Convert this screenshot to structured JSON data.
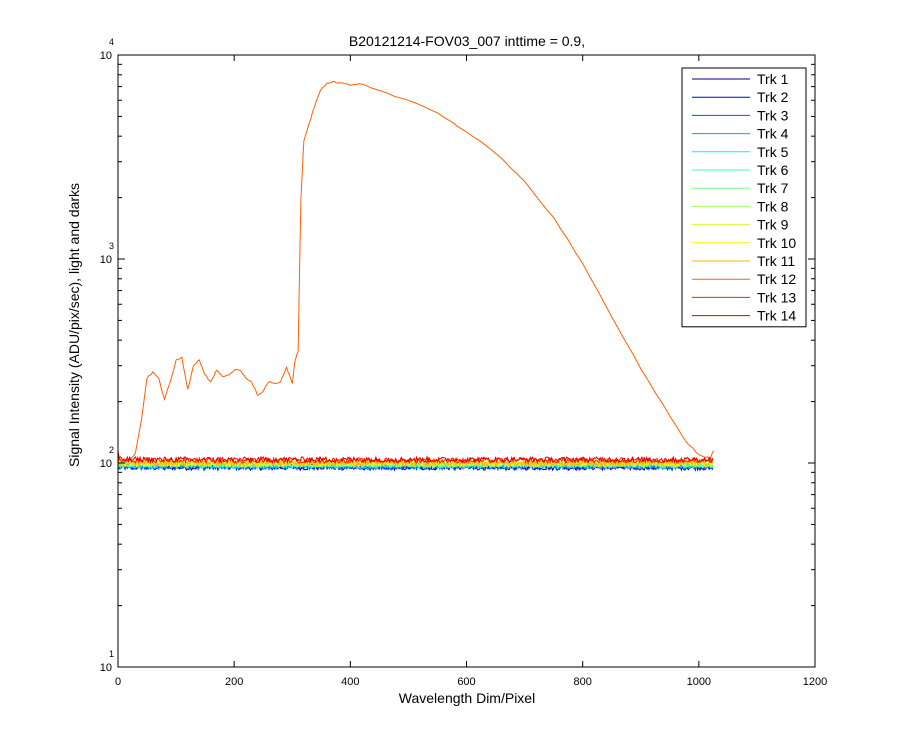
{
  "chart_data": {
    "type": "line",
    "title": "B20121214-FOV03_007 inttime = 0.9,",
    "xlabel": "Wavelength Dim/Pixel",
    "ylabel": "Signal Intensity (ADU/pix/sec), light and darks",
    "xlim": [
      0,
      1200
    ],
    "ylim": [
      10,
      10000
    ],
    "yscale": "log",
    "grid": false,
    "legend_position": "top-right",
    "x_ticks": [
      {
        "value": 0,
        "label": "0"
      },
      {
        "value": 200,
        "label": "200"
      },
      {
        "value": 400,
        "label": "400"
      },
      {
        "value": 600,
        "label": "600"
      },
      {
        "value": 800,
        "label": "800"
      },
      {
        "value": 1000,
        "label": "1000"
      },
      {
        "value": 1200,
        "label": "1200"
      }
    ],
    "y_ticks": [
      {
        "value": 10,
        "base": "10",
        "exp": "1"
      },
      {
        "value": 100,
        "base": "10",
        "exp": "2"
      },
      {
        "value": 1000,
        "base": "10",
        "exp": "3"
      },
      {
        "value": 10000,
        "base": "10",
        "exp": "4"
      }
    ],
    "series": [
      {
        "name": "Trk 1",
        "color": "#00008f",
        "level": 95
      },
      {
        "name": "Trk 2",
        "color": "#0000ef",
        "level": 96
      },
      {
        "name": "Trk 3",
        "color": "#0050ff",
        "level": 96
      },
      {
        "name": "Trk 4",
        "color": "#00a0ff",
        "level": 97
      },
      {
        "name": "Trk 5",
        "color": "#00efff",
        "level": 97
      },
      {
        "name": "Trk 6",
        "color": "#40ffbf",
        "level": 98
      },
      {
        "name": "Trk 7",
        "color": "#70ff90",
        "level": 98
      },
      {
        "name": "Trk 8",
        "color": "#a0ff60",
        "level": 99
      },
      {
        "name": "Trk 9",
        "color": "#d0ff30",
        "level": 99
      },
      {
        "name": "Trk 10",
        "color": "#ffef00",
        "level": 100
      },
      {
        "name": "Trk 11",
        "color": "#ffb000",
        "level": 100
      },
      {
        "name": "Trk 12",
        "color": "#ff6000",
        "signal": {
          "x": [
            0,
            10,
            20,
            30,
            40,
            50,
            60,
            70,
            80,
            90,
            100,
            110,
            120,
            130,
            140,
            150,
            160,
            170,
            180,
            190,
            200,
            210,
            220,
            230,
            240,
            250,
            260,
            270,
            280,
            290,
            300,
            305,
            310,
            315,
            320,
            330,
            340,
            350,
            360,
            370,
            380,
            400,
            420,
            450,
            500,
            550,
            600,
            650,
            700,
            750,
            800,
            850,
            900,
            950,
            980,
            1000,
            1020,
            1025
          ],
          "y": [
            105,
            102,
            103,
            112,
            160,
            260,
            280,
            260,
            205,
            250,
            320,
            330,
            230,
            300,
            320,
            270,
            250,
            285,
            265,
            270,
            285,
            285,
            260,
            250,
            215,
            225,
            250,
            245,
            250,
            295,
            245,
            320,
            350,
            2000,
            3800,
            4700,
            5800,
            6800,
            7300,
            7400,
            7300,
            7100,
            7200,
            6700,
            6000,
            5200,
            4200,
            3300,
            2400,
            1600,
            950,
            520,
            290,
            170,
            125,
            110,
            105,
            115
          ]
        }
      },
      {
        "name": "Trk 13",
        "color": "#ff2000",
        "level": 103
      },
      {
        "name": "Trk 14",
        "color": "#df0000",
        "level": 104
      }
    ]
  }
}
